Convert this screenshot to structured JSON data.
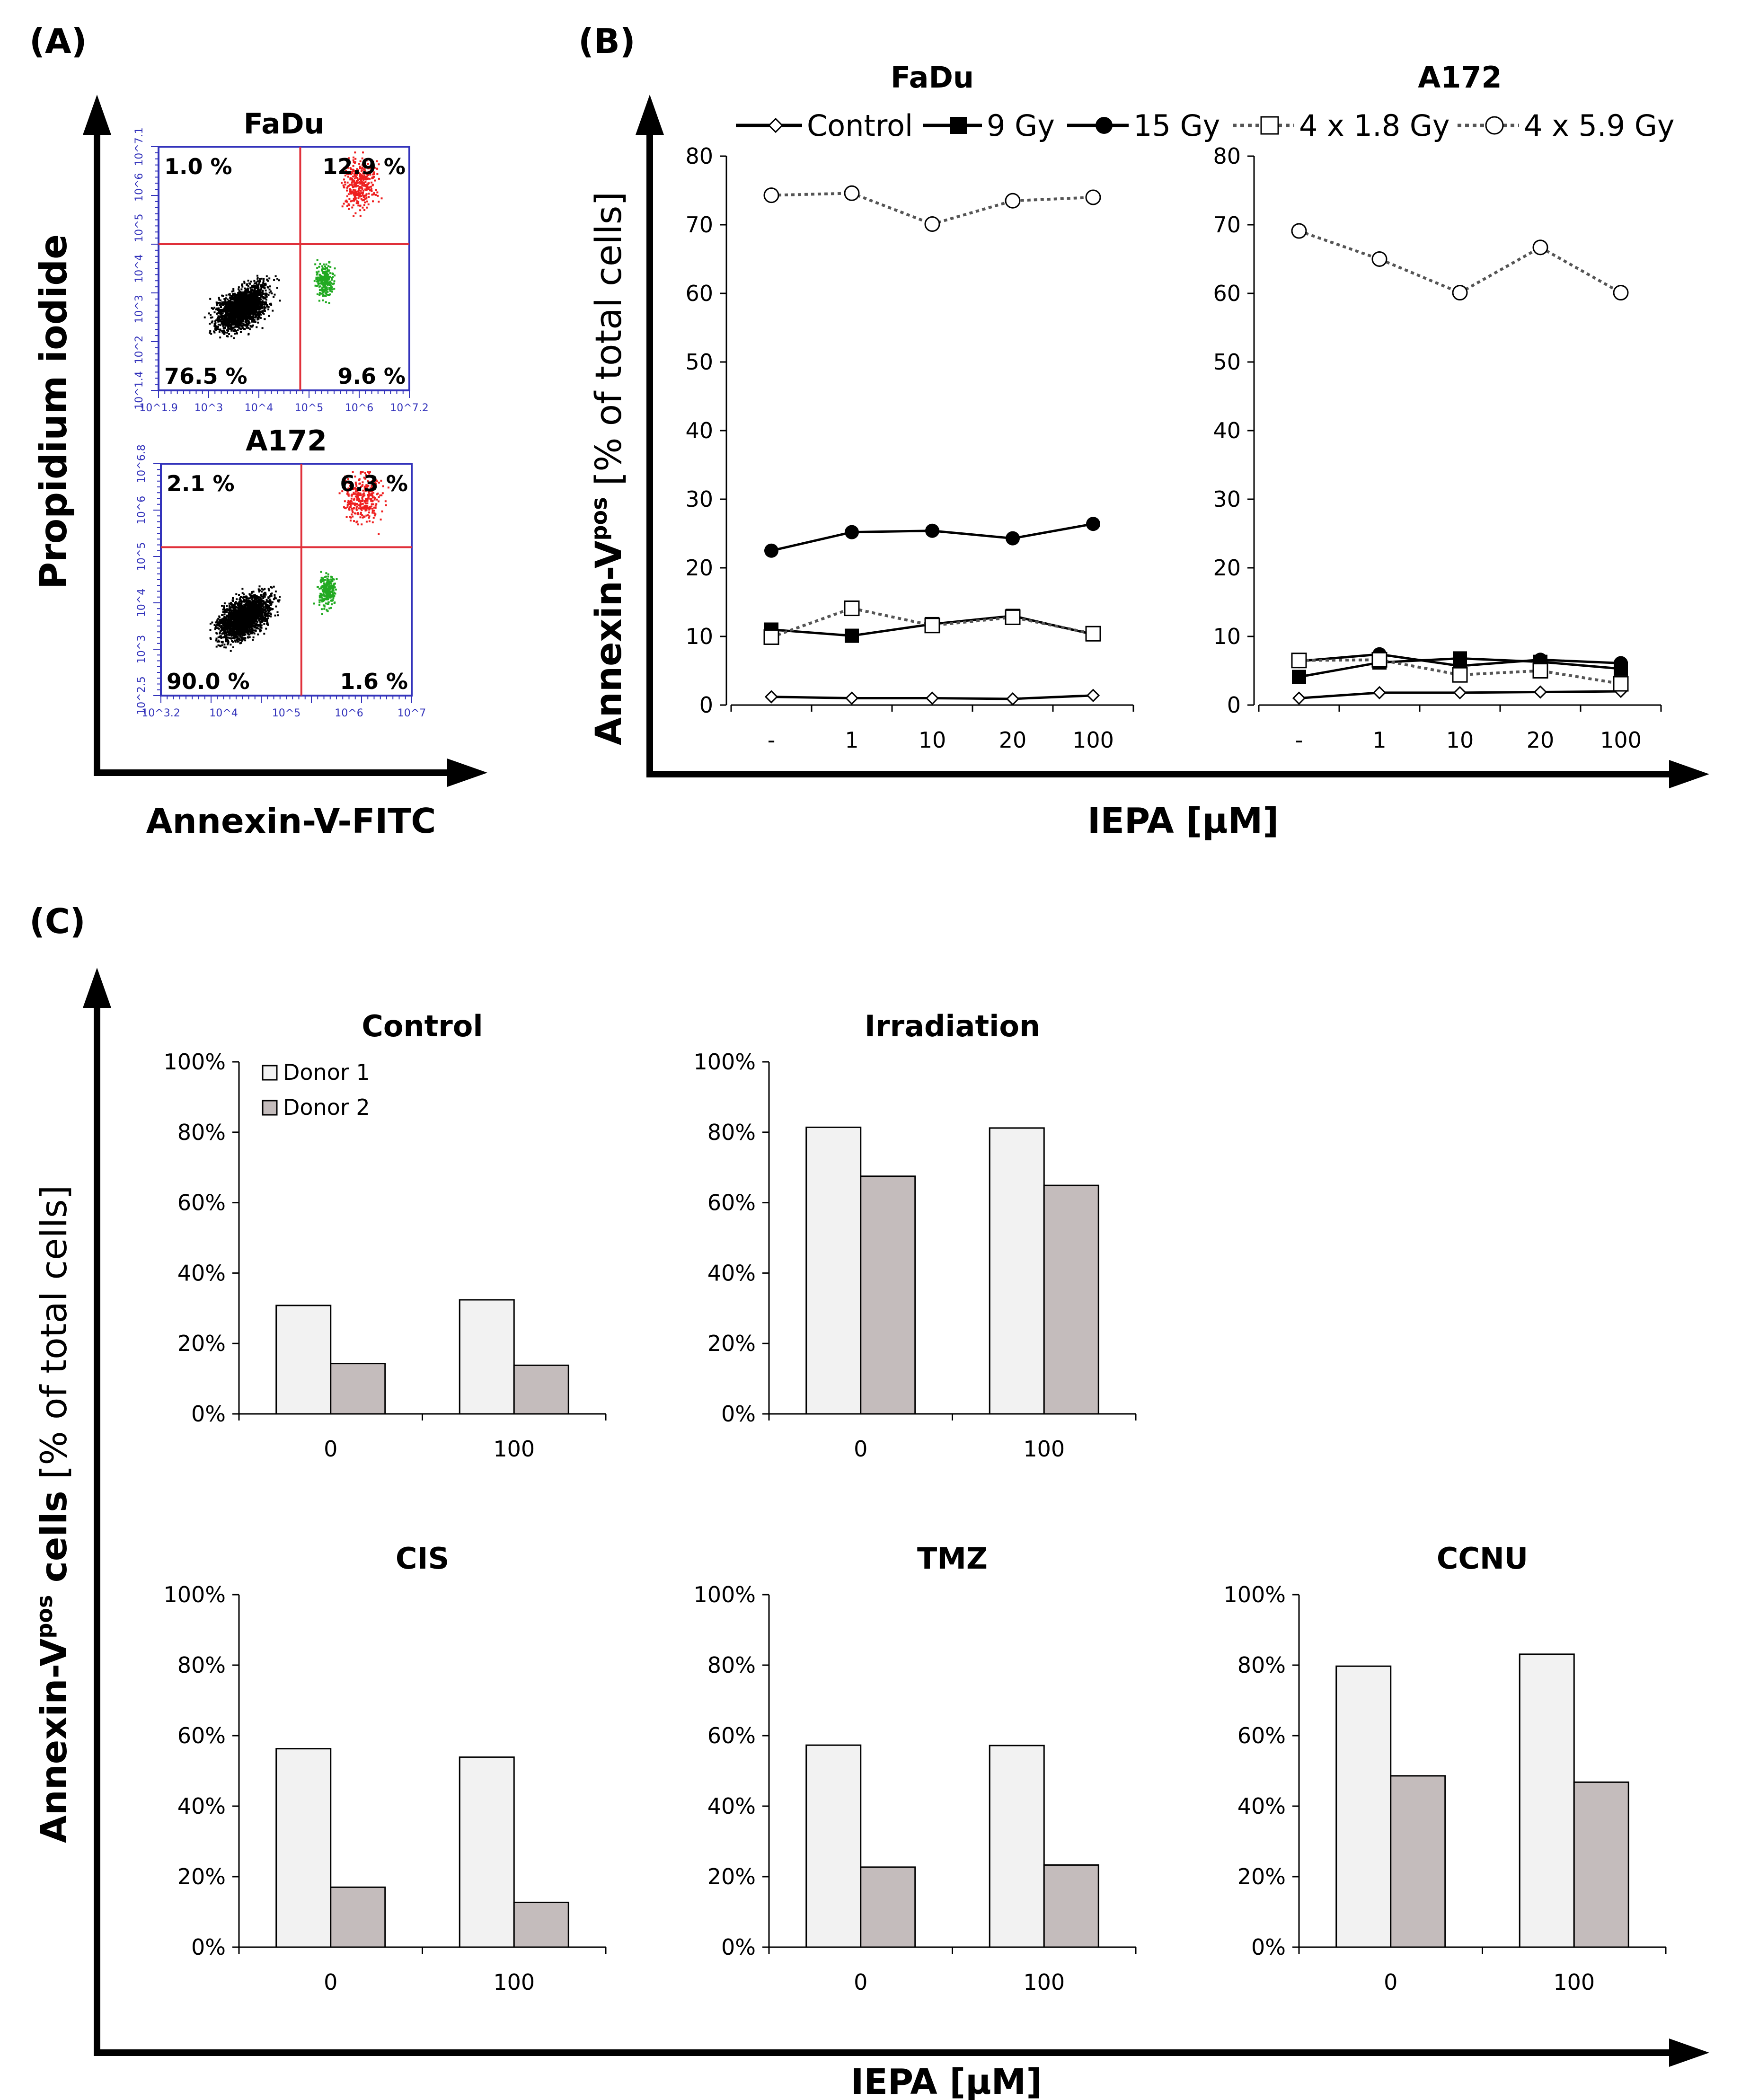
{
  "colors": {
    "axis": "#000000",
    "flow_frame": "#3333bb",
    "gate": "#e0303a",
    "bar_donor1": "#f2f2f2",
    "bar_donor2": "#c4bcbc",
    "scatter_live": "#000000",
    "scatter_late": "#ee2020",
    "scatter_early": "#22aa22"
  },
  "panel_a": {
    "label": "(A)",
    "ylabel": "Propidium iodide",
    "xlabel": "Annexin-V-FITC",
    "plots": [
      {
        "title": "FaDu",
        "q_ul": "1.0 %",
        "q_ur": "12.9 %",
        "q_ll": "76.5 %",
        "q_lr": "9.6 %",
        "x_ticks": [
          "10^1.9",
          "10^3",
          "10^4",
          "10^5",
          "10^6",
          "10^7.2"
        ],
        "y_ticks": [
          "10^1.4",
          "10^2",
          "10^3",
          "10^4",
          "10^5",
          "10^6",
          "10^7.1"
        ]
      },
      {
        "title": "A172",
        "q_ul": "2.1 %",
        "q_ur": "6.3 %",
        "q_ll": "90.0 %",
        "q_lr": "1.6 %",
        "x_ticks": [
          "10^3.2",
          "10^4",
          "10^5",
          "10^6",
          "10^7"
        ],
        "y_ticks": [
          "10^2.5",
          "10^3",
          "10^4",
          "10^5",
          "10^6",
          "10^6.8"
        ]
      }
    ]
  },
  "panel_b": {
    "label": "(B)",
    "xlabel": "IEPA [μM]",
    "ylabel_main": "Annexin-V",
    "ylabel_sup": "pos",
    "ylabel_rest": " [% of total cells]"
  },
  "panel_c": {
    "label": "(C)",
    "xlabel": "IEPA [μM]",
    "ylabel_main": "Annexin-V",
    "ylabel_sup": "pos",
    "ylabel_bold2": " cells",
    "ylabel_rest": " [% of total cells]"
  },
  "chart_data": [
    {
      "type": "line",
      "panel": "B",
      "legend": [
        "Control",
        "9 Gy",
        "15 Gy",
        "4 x 1.8 Gy",
        "4 x 5.9 Gy"
      ],
      "series_styles": [
        {
          "name": "Control",
          "marker": "diamond-open",
          "dash": "solid"
        },
        {
          "name": "9 Gy",
          "marker": "square-filled",
          "dash": "solid"
        },
        {
          "name": "15 Gy",
          "marker": "circle-filled",
          "dash": "solid"
        },
        {
          "name": "4 x 1.8 Gy",
          "marker": "square-open",
          "dash": "dotted"
        },
        {
          "name": "4 x 5.9 Gy",
          "marker": "circle-open",
          "dash": "dotted"
        }
      ],
      "categories": [
        "-",
        "1",
        "10",
        "20",
        "100"
      ],
      "y_ticks": [
        "0",
        "10",
        "20",
        "30",
        "40",
        "50",
        "60",
        "70",
        "80"
      ],
      "ylim": [
        0,
        80
      ],
      "subplots": [
        {
          "title": "FaDu",
          "series": [
            {
              "name": "Control",
              "values": [
                1.2,
                1.0,
                1.0,
                0.9,
                1.4
              ]
            },
            {
              "name": "9 Gy",
              "values": [
                11.0,
                10.1,
                11.8,
                13.0,
                10.3
              ]
            },
            {
              "name": "15 Gy",
              "values": [
                22.5,
                25.2,
                25.4,
                24.3,
                26.4
              ]
            },
            {
              "name": "4 x 1.8 Gy",
              "values": [
                9.9,
                14.1,
                11.6,
                12.8,
                10.4
              ]
            },
            {
              "name": "4 x 5.9 Gy",
              "values": [
                74.3,
                74.6,
                70.1,
                73.5,
                74.0
              ]
            }
          ]
        },
        {
          "title": "A172",
          "series": [
            {
              "name": "Control",
              "values": [
                1.0,
                1.8,
                1.8,
                1.9,
                2.0
              ]
            },
            {
              "name": "9 Gy",
              "values": [
                4.1,
                6.2,
                6.8,
                6.3,
                5.3
              ]
            },
            {
              "name": "15 Gy",
              "values": [
                6.4,
                7.4,
                5.7,
                6.6,
                6.1
              ]
            },
            {
              "name": "4 x 1.8 Gy",
              "values": [
                6.5,
                6.6,
                4.4,
                5.0,
                3.1
              ]
            },
            {
              "name": "4 x 5.9 Gy",
              "values": [
                69.1,
                65.0,
                60.1,
                66.7,
                60.1
              ]
            }
          ]
        }
      ]
    },
    {
      "type": "bar",
      "panel": "C",
      "legend": [
        "Donor 1",
        "Donor 2"
      ],
      "categories": [
        "0",
        "100"
      ],
      "y_ticks": [
        "0%",
        "20%",
        "40%",
        "60%",
        "80%",
        "100%"
      ],
      "ylim": [
        0,
        100
      ],
      "subplots": [
        {
          "title": "Control",
          "series": [
            {
              "name": "Donor 1",
              "values": [
                30.8,
                32.4
              ]
            },
            {
              "name": "Donor 2",
              "values": [
                14.3,
                13.8
              ]
            }
          ]
        },
        {
          "title": "Irradiation",
          "series": [
            {
              "name": "Donor 1",
              "values": [
                81.4,
                81.2
              ]
            },
            {
              "name": "Donor 2",
              "values": [
                67.5,
                64.9
              ]
            }
          ]
        },
        {
          "title": "CIS",
          "series": [
            {
              "name": "Donor 1",
              "values": [
                56.3,
                53.9
              ]
            },
            {
              "name": "Donor 2",
              "values": [
                17.0,
                12.7
              ]
            }
          ]
        },
        {
          "title": "TMZ",
          "series": [
            {
              "name": "Donor 1",
              "values": [
                57.3,
                57.2
              ]
            },
            {
              "name": "Donor 2",
              "values": [
                22.7,
                23.3
              ]
            }
          ]
        },
        {
          "title": "CCNU",
          "series": [
            {
              "name": "Donor 1",
              "values": [
                79.7,
                83.1
              ]
            },
            {
              "name": "Donor 2",
              "values": [
                48.6,
                46.8
              ]
            }
          ]
        }
      ]
    }
  ]
}
